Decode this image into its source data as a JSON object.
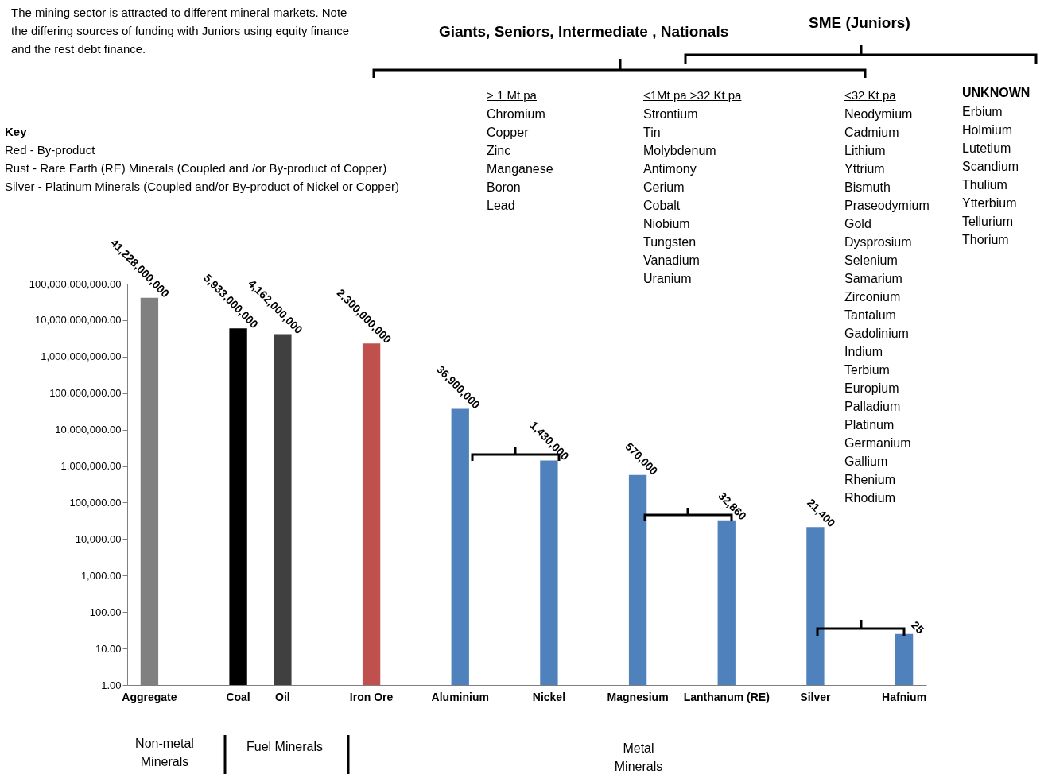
{
  "chart_data": {
    "type": "bar",
    "categories": [
      "Aggregate",
      null,
      "Coal",
      "Oil",
      null,
      "Iron Ore",
      null,
      "Aluminium",
      null,
      "Nickel",
      null,
      "Magnesium",
      null,
      "Lanthanum (RE)",
      null,
      "Silver",
      null,
      "Hafnium"
    ],
    "values": [
      41228000000,
      null,
      5933000000,
      4162000000,
      null,
      2300000000,
      null,
      36900000,
      null,
      1430000,
      null,
      570000,
      null,
      32860,
      null,
      21400,
      null,
      25
    ],
    "colors": [
      "#808080",
      null,
      "#000000",
      "#404040",
      null,
      "#c0504d",
      null,
      "#4f81bd",
      null,
      "#4f81bd",
      null,
      "#4f81bd",
      null,
      "#4f81bd",
      null,
      "#4f81bd",
      null,
      "#4f81bd"
    ],
    "value_labels": [
      "41,228,000,000",
      null,
      "5,933,000,000",
      "4,162,000,000",
      null,
      "2,300,000,000",
      null,
      "36,900,000",
      null,
      "1,430,000",
      null,
      "570,000",
      null,
      "32,860",
      null,
      "21,400",
      null,
      "25"
    ],
    "log": true,
    "grid": false,
    "ylim": [
      1,
      100000000000
    ],
    "yticks": [
      {
        "value": 1,
        "label": "1.00"
      },
      {
        "value": 10,
        "label": "10.00"
      },
      {
        "value": 100,
        "label": "100.00"
      },
      {
        "value": 1000,
        "label": "1,000.00"
      },
      {
        "value": 10000,
        "label": "10,000.00"
      },
      {
        "value": 100000,
        "label": "100,000.00"
      },
      {
        "value": 1000000,
        "label": "1,000,000.00"
      },
      {
        "value": 10000000,
        "label": "10,000,000.00"
      },
      {
        "value": 100000000,
        "label": "100,000,000.00"
      },
      {
        "value": 1000000000,
        "label": "1,000,000,000.00"
      },
      {
        "value": 10000000000,
        "label": "10,000,000,000.00"
      },
      {
        "value": 100000000000,
        "label": "100,000,000,000.00"
      }
    ],
    "annotations": [
      "The mining sector is attracted to different mineral markets. Note the differing sources of funding with Juniors using equity finance and the rest debt finance.",
      "Giants, Seniors, Intermediate , Nationals",
      "SME (Juniors)",
      "Key",
      "Red - By-product",
      "Rust - Rare Earth (RE) Minerals (Coupled and /or By-product of Copper)",
      "Silver - Platinum Minerals (Coupled and/or By-product of Nickel or Copper)",
      "> 1 Mt pa",
      "Chromium\nCopper\nZinc\nManganese\nBoron\nLead",
      "<1Mt pa >32 Kt pa",
      "Strontium\nTin\nMolybdenum\nAntimony\nCerium\nCobalt\nNiobium\nTungsten\nVanadium\nUranium",
      "<32 Kt pa",
      "Neodymium\nCadmium\nLithium\nYttrium\nBismuth\nPraseodymium\nGold\nDysprosium\nSelenium\nSamarium\nZirconium\nTantalum\nGadolinium\nIndium\nTerbium\nEuropium\nPalladium\nPlatinum\nGermanium\nGallium\nRhenium\nRhodium",
      "UNKNOWN",
      "Erbium\nHolmium\nLutetium\nScandium\nThulium\nYtterbium\nTellurium\nThorium",
      "Non-metal Minerals",
      "Fuel Minerals",
      "Metal Minerals"
    ]
  }
}
